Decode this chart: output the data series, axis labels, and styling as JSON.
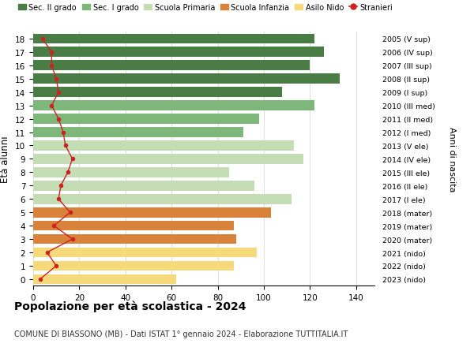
{
  "ages": [
    18,
    17,
    16,
    15,
    14,
    13,
    12,
    11,
    10,
    9,
    8,
    7,
    6,
    5,
    4,
    3,
    2,
    1,
    0
  ],
  "years": [
    "2005 (V sup)",
    "2006 (IV sup)",
    "2007 (III sup)",
    "2008 (II sup)",
    "2009 (I sup)",
    "2010 (III med)",
    "2011 (II med)",
    "2012 (I med)",
    "2013 (V ele)",
    "2014 (IV ele)",
    "2015 (III ele)",
    "2016 (II ele)",
    "2017 (I ele)",
    "2018 (mater)",
    "2019 (mater)",
    "2020 (mater)",
    "2021 (nido)",
    "2022 (nido)",
    "2023 (nido)"
  ],
  "bar_values": [
    122,
    126,
    120,
    133,
    108,
    122,
    98,
    91,
    113,
    117,
    85,
    96,
    112,
    103,
    87,
    88,
    97,
    87,
    62
  ],
  "bar_colors": [
    "#4a7c45",
    "#4a7c45",
    "#4a7c45",
    "#4a7c45",
    "#4a7c45",
    "#7db87a",
    "#7db87a",
    "#7db87a",
    "#c5ddb5",
    "#c5ddb5",
    "#c5ddb5",
    "#c5ddb5",
    "#c5ddb5",
    "#d9823a",
    "#d9823a",
    "#d9823a",
    "#f5d97a",
    "#f5d97a",
    "#f5d97a"
  ],
  "stranieri_values": [
    4,
    8,
    8,
    10,
    11,
    8,
    11,
    13,
    14,
    17,
    15,
    12,
    11,
    16,
    9,
    17,
    6,
    10,
    3
  ],
  "stranieri_color": "#cc2222",
  "xlim": [
    0,
    148
  ],
  "xticks": [
    0,
    20,
    40,
    60,
    80,
    100,
    120,
    140
  ],
  "ylabel_right": "Anni di nascita",
  "ylabel_left_text": "Età alunni",
  "title": "Popolazione per età scolastica - 2024",
  "subtitle": "COMUNE DI BIASSONO (MB) - Dati ISTAT 1° gennaio 2024 - Elaborazione TUTTITALIA.IT",
  "legend_labels": [
    "Sec. II grado",
    "Sec. I grado",
    "Scuola Primaria",
    "Scuola Infanzia",
    "Asilo Nido",
    "Stranieri"
  ],
  "legend_colors": [
    "#4a7c45",
    "#7db87a",
    "#c5ddb5",
    "#d9823a",
    "#f5d97a",
    "#cc2222"
  ],
  "background_color": "#ffffff",
  "grid_color": "#dddddd",
  "bar_height": 0.75
}
